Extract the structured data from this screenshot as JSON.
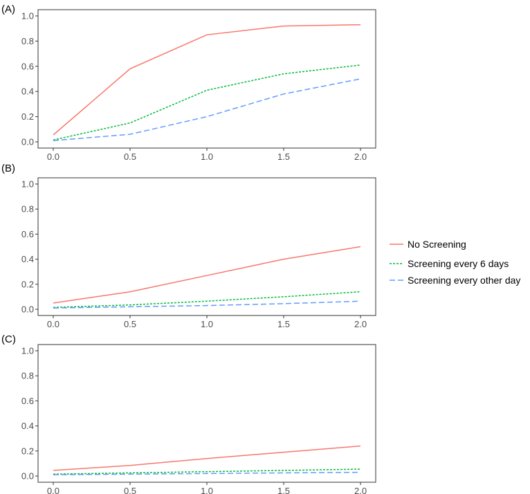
{
  "chart_data": [
    {
      "type": "line",
      "panel": "(A)",
      "x": [
        0.0,
        0.5,
        1.0,
        1.5,
        2.0
      ],
      "x_tick_labels": [
        "0.0",
        "0.5",
        "1.0",
        "1.5",
        "2.0"
      ],
      "y_tick_labels": [
        "0.0",
        "0.2",
        "0.4",
        "0.6",
        "0.8",
        "1.0"
      ],
      "xlim": [
        0,
        2
      ],
      "ylim": [
        0,
        1
      ],
      "series": [
        {
          "name": "No Screening",
          "values": [
            0.055,
            0.58,
            0.85,
            0.92,
            0.93
          ]
        },
        {
          "name": "Screening every 6 days",
          "values": [
            0.015,
            0.15,
            0.41,
            0.54,
            0.61
          ]
        },
        {
          "name": "Screening every other day",
          "values": [
            0.01,
            0.06,
            0.2,
            0.38,
            0.5
          ]
        }
      ]
    },
    {
      "type": "line",
      "panel": "(B)",
      "x": [
        0.0,
        0.5,
        1.0,
        1.5,
        2.0
      ],
      "x_tick_labels": [
        "0.0",
        "0.5",
        "1.0",
        "1.5",
        "2.0"
      ],
      "y_tick_labels": [
        "0.0",
        "0.2",
        "0.4",
        "0.6",
        "0.8",
        "1.0"
      ],
      "xlim": [
        0,
        2
      ],
      "ylim": [
        0,
        1
      ],
      "series": [
        {
          "name": "No Screening",
          "values": [
            0.05,
            0.14,
            0.27,
            0.4,
            0.5
          ]
        },
        {
          "name": "Screening every 6 days",
          "values": [
            0.015,
            0.035,
            0.065,
            0.1,
            0.14
          ]
        },
        {
          "name": "Screening every other day",
          "values": [
            0.01,
            0.02,
            0.03,
            0.045,
            0.065
          ]
        }
      ]
    },
    {
      "type": "line",
      "panel": "(C)",
      "x": [
        0.0,
        0.5,
        1.0,
        1.5,
        2.0
      ],
      "x_tick_labels": [
        "0.0",
        "0.5",
        "1.0",
        "1.5",
        "2.0"
      ],
      "y_tick_labels": [
        "0.0",
        "0.2",
        "0.4",
        "0.6",
        "0.8",
        "1.0"
      ],
      "xlim": [
        0,
        2
      ],
      "ylim": [
        0,
        1
      ],
      "series": [
        {
          "name": "No Screening",
          "values": [
            0.045,
            0.085,
            0.14,
            0.19,
            0.24
          ]
        },
        {
          "name": "Screening every 6 days",
          "values": [
            0.015,
            0.025,
            0.035,
            0.045,
            0.055
          ]
        },
        {
          "name": "Screening every other day",
          "values": [
            0.01,
            0.015,
            0.02,
            0.025,
            0.03
          ]
        }
      ]
    }
  ],
  "legend": {
    "items": [
      {
        "label": "No Screening",
        "color": "#F8766D",
        "dash": "solid"
      },
      {
        "label": "Screening every 6 days",
        "color": "#00BA38",
        "dash": "dotted"
      },
      {
        "label": "Screening every other day",
        "color": "#619CFF",
        "dash": "dashed"
      }
    ]
  }
}
